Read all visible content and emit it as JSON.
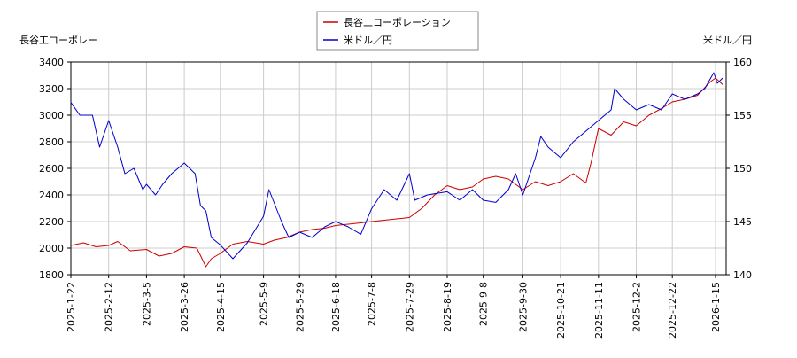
{
  "chart_data": {
    "type": "line",
    "left_axis_label": "長谷工コーポレー",
    "right_axis_label": "米ドル／円",
    "legend_placement": "top-center",
    "grid": true,
    "y_left": {
      "range": [
        1800,
        3400
      ],
      "ticks": [
        1800,
        2000,
        2200,
        2400,
        2600,
        2800,
        3000,
        3200,
        3400
      ]
    },
    "y_right": {
      "range": [
        140,
        160
      ],
      "ticks": [
        140,
        145,
        150,
        155,
        160
      ]
    },
    "x_ticks": [
      "2025-1-22",
      "2025-2-12",
      "2025-3-5",
      "2025-3-26",
      "2025-4-15",
      "2025-5-9",
      "2025-5-29",
      "2025-6-18",
      "2025-7-8",
      "2025-7-29",
      "2025-8-19",
      "2025-9-8",
      "2025-9-30",
      "2025-10-21",
      "2025-11-11",
      "2025-12-2",
      "2025-12-22",
      "2026-1-15"
    ],
    "series": [
      {
        "name": "長谷工コーポレーション",
        "color": "#cc0000",
        "axis": "left",
        "points": [
          [
            "2025-1-22",
            2020
          ],
          [
            "2025-1-29",
            2040
          ],
          [
            "2025-2-5",
            2010
          ],
          [
            "2025-2-12",
            2020
          ],
          [
            "2025-2-17",
            2050
          ],
          [
            "2025-2-24",
            1980
          ],
          [
            "2025-3-5",
            1990
          ],
          [
            "2025-3-12",
            1940
          ],
          [
            "2025-3-19",
            1960
          ],
          [
            "2025-3-26",
            2010
          ],
          [
            "2025-4-2",
            2000
          ],
          [
            "2025-4-7",
            1860
          ],
          [
            "2025-4-10",
            1920
          ],
          [
            "2025-4-15",
            1960
          ],
          [
            "2025-4-22",
            2030
          ],
          [
            "2025-4-30",
            2050
          ],
          [
            "2025-5-9",
            2030
          ],
          [
            "2025-5-15",
            2060
          ],
          [
            "2025-5-22",
            2080
          ],
          [
            "2025-5-29",
            2120
          ],
          [
            "2025-6-5",
            2140
          ],
          [
            "2025-6-12",
            2150
          ],
          [
            "2025-6-18",
            2170
          ],
          [
            "2025-6-25",
            2180
          ],
          [
            "2025-7-2",
            2190
          ],
          [
            "2025-7-8",
            2200
          ],
          [
            "2025-7-15",
            2210
          ],
          [
            "2025-7-22",
            2220
          ],
          [
            "2025-7-29",
            2230
          ],
          [
            "2025-8-5",
            2300
          ],
          [
            "2025-8-12",
            2400
          ],
          [
            "2025-8-19",
            2470
          ],
          [
            "2025-8-26",
            2440
          ],
          [
            "2025-9-2",
            2460
          ],
          [
            "2025-9-8",
            2520
          ],
          [
            "2025-9-15",
            2540
          ],
          [
            "2025-9-22",
            2520
          ],
          [
            "2025-9-30",
            2440
          ],
          [
            "2025-10-7",
            2500
          ],
          [
            "2025-10-14",
            2470
          ],
          [
            "2025-10-21",
            2500
          ],
          [
            "2025-10-28",
            2560
          ],
          [
            "2025-11-4",
            2490
          ],
          [
            "2025-11-7",
            2650
          ],
          [
            "2025-11-11",
            2900
          ],
          [
            "2025-11-18",
            2850
          ],
          [
            "2025-11-25",
            2950
          ],
          [
            "2025-12-2",
            2920
          ],
          [
            "2025-12-9",
            3000
          ],
          [
            "2025-12-16",
            3050
          ],
          [
            "2025-12-22",
            3100
          ],
          [
            "2025-12-29",
            3120
          ],
          [
            "2026-1-5",
            3150
          ],
          [
            "2026-1-12",
            3250
          ],
          [
            "2026-1-15",
            3280
          ],
          [
            "2026-1-19",
            3230
          ]
        ]
      },
      {
        "name": "米ドル／円",
        "color": "#0000cc",
        "axis": "right",
        "points": [
          [
            "2025-1-22",
            156.2
          ],
          [
            "2025-1-27",
            155.0
          ],
          [
            "2025-2-3",
            155.0
          ],
          [
            "2025-2-7",
            152.0
          ],
          [
            "2025-2-12",
            154.5
          ],
          [
            "2025-2-17",
            152.0
          ],
          [
            "2025-2-21",
            149.5
          ],
          [
            "2025-2-26",
            150.0
          ],
          [
            "2025-3-3",
            148.0
          ],
          [
            "2025-3-5",
            148.5
          ],
          [
            "2025-3-10",
            147.5
          ],
          [
            "2025-3-14",
            148.5
          ],
          [
            "2025-3-19",
            149.5
          ],
          [
            "2025-3-26",
            150.5
          ],
          [
            "2025-4-1",
            149.5
          ],
          [
            "2025-4-4",
            146.5
          ],
          [
            "2025-4-7",
            146.0
          ],
          [
            "2025-4-10",
            143.5
          ],
          [
            "2025-4-15",
            142.8
          ],
          [
            "2025-4-22",
            141.5
          ],
          [
            "2025-4-30",
            143.0
          ],
          [
            "2025-5-9",
            145.5
          ],
          [
            "2025-5-12",
            148.0
          ],
          [
            "2025-5-19",
            145.0
          ],
          [
            "2025-5-23",
            143.5
          ],
          [
            "2025-5-29",
            144.0
          ],
          [
            "2025-6-5",
            143.5
          ],
          [
            "2025-6-12",
            144.5
          ],
          [
            "2025-6-18",
            145.0
          ],
          [
            "2025-6-25",
            144.5
          ],
          [
            "2025-7-2",
            143.8
          ],
          [
            "2025-7-8",
            146.2
          ],
          [
            "2025-7-15",
            148.0
          ],
          [
            "2025-7-22",
            147.0
          ],
          [
            "2025-7-29",
            149.5
          ],
          [
            "2025-8-1",
            147.0
          ],
          [
            "2025-8-8",
            147.5
          ],
          [
            "2025-8-19",
            147.8
          ],
          [
            "2025-8-26",
            147.0
          ],
          [
            "2025-9-2",
            148.0
          ],
          [
            "2025-9-8",
            147.0
          ],
          [
            "2025-9-15",
            146.8
          ],
          [
            "2025-9-22",
            148.0
          ],
          [
            "2025-9-26",
            149.5
          ],
          [
            "2025-9-30",
            147.5
          ],
          [
            "2025-10-7",
            151.0
          ],
          [
            "2025-10-10",
            153.0
          ],
          [
            "2025-10-14",
            152.0
          ],
          [
            "2025-10-21",
            151.0
          ],
          [
            "2025-10-28",
            152.5
          ],
          [
            "2025-11-4",
            153.5
          ],
          [
            "2025-11-11",
            154.5
          ],
          [
            "2025-11-18",
            155.5
          ],
          [
            "2025-11-20",
            157.5
          ],
          [
            "2025-11-25",
            156.5
          ],
          [
            "2025-12-2",
            155.5
          ],
          [
            "2025-12-9",
            156.0
          ],
          [
            "2025-12-16",
            155.5
          ],
          [
            "2025-12-22",
            157.0
          ],
          [
            "2025-12-29",
            156.5
          ],
          [
            "2026-1-5",
            157.0
          ],
          [
            "2026-1-9",
            157.5
          ],
          [
            "2026-1-14",
            159.0
          ],
          [
            "2026-1-16",
            158.0
          ],
          [
            "2026-1-19",
            158.5
          ]
        ]
      }
    ]
  }
}
